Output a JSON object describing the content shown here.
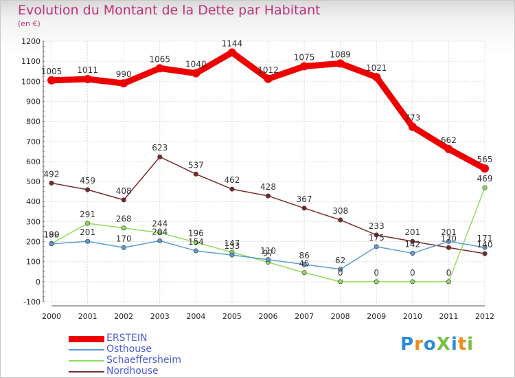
{
  "header": {
    "title": "Evolution du Montant de la Dette par Habitant",
    "subtitle": "(en €)"
  },
  "logo": {
    "text": "ProXiti",
    "colors": [
      "#2e8bd6",
      "#f08a1c",
      "#2e8bd6",
      "#76c043",
      "#2e8bd6",
      "#f08a1c",
      "#76c043"
    ]
  },
  "chart_data": {
    "type": "line",
    "x": [
      "2000",
      "2001",
      "2002",
      "2003",
      "2004",
      "2005",
      "2006",
      "2007",
      "2008",
      "2009",
      "2010",
      "2011",
      "2012"
    ],
    "ylim": [
      -100,
      1200
    ],
    "yticks": [
      -100,
      0,
      100,
      200,
      300,
      400,
      500,
      600,
      700,
      800,
      900,
      1000,
      1100,
      1200
    ],
    "grid": true,
    "legend_position": "bottom-left",
    "series": [
      {
        "name": "ERSTEIN",
        "color": "#ee0000",
        "values": [
          1005,
          1011,
          990,
          1065,
          1040,
          1144,
          1012,
          1075,
          1089,
          1021,
          773,
          662,
          565
        ]
      },
      {
        "name": "Osthouse",
        "color": "#5b9bd5",
        "values": [
          189,
          201,
          170,
          204,
          154,
          133,
          110,
          86,
          62,
          175,
          142,
          201,
          171
        ]
      },
      {
        "name": "Schaeffersheim",
        "color": "#8fdc5a",
        "values": [
          190,
          291,
          268,
          244,
          196,
          147,
          97,
          45,
          0,
          0,
          0,
          0,
          469
        ]
      },
      {
        "name": "Nordhouse",
        "color": "#7a2a2a",
        "values": [
          492,
          459,
          408,
          623,
          537,
          462,
          428,
          367,
          308,
          233,
          201,
          170,
          140
        ]
      }
    ]
  }
}
